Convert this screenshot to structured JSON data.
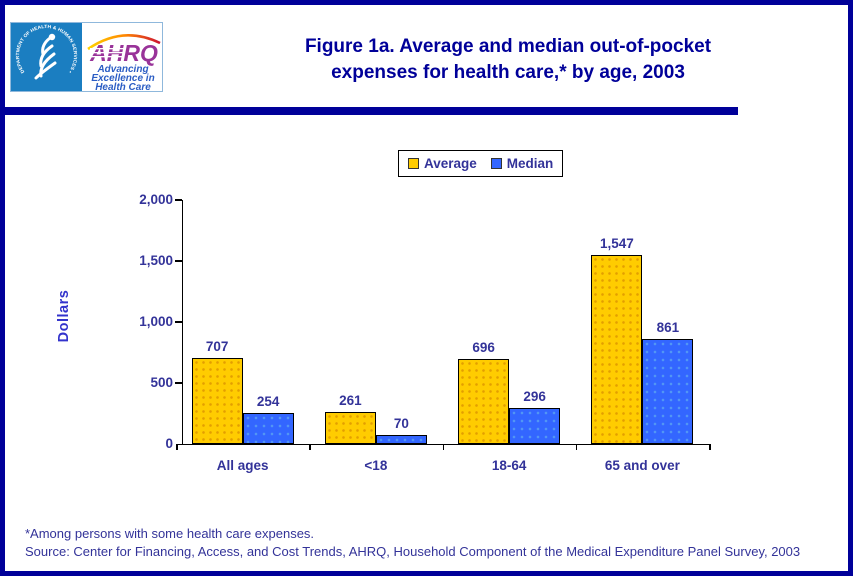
{
  "header": {
    "title_lines": [
      "Figure 1a. Average and median out-of-pocket",
      "expenses for health care,* by age, 2003"
    ]
  },
  "logo": {
    "hhs_circle_text": "DEPARTMENT OF HEALTH & HUMAN SERVICES • USA",
    "acronym": "AHRQ",
    "tagline": [
      "Advancing",
      "Excellence in",
      "Health Care"
    ]
  },
  "legend": {
    "items": [
      {
        "label": "Average"
      },
      {
        "label": "Median"
      }
    ]
  },
  "chart_data": {
    "type": "bar",
    "title": "Figure 1a. Average and median out-of-pocket expenses for health care,* by age, 2003",
    "categories": [
      "All ages",
      "<18",
      "18-64",
      "65 and over"
    ],
    "series": [
      {
        "name": "Average",
        "color": "#FFCC00",
        "values": [
          707,
          261,
          696,
          1547
        ],
        "labels": [
          "707",
          "261",
          "696",
          "1,547"
        ]
      },
      {
        "name": "Median",
        "color": "#3366FF",
        "values": [
          254,
          70,
          296,
          861
        ],
        "labels": [
          "254",
          "70",
          "296",
          "861"
        ]
      }
    ],
    "xlabel": "",
    "ylabel": "Dollars",
    "ylim": [
      0,
      2000
    ],
    "yticks": [
      0,
      500,
      1000,
      1500,
      2000
    ],
    "ytick_labels": [
      "0",
      "500",
      "1,000",
      "1,500",
      "2,000"
    ],
    "grid": false,
    "legend_position": "top-center"
  },
  "footnotes": [
    "*Among persons with some health care expenses.",
    "Source: Center for Financing, Access, and Cost Trends, AHRQ, Household Component of the Medical Expenditure Panel Survey, 2003"
  ],
  "colors": {
    "accent_navy": "#000099",
    "chart_text": "#333399",
    "hhs_blue": "#1B7EC1",
    "ahrq_purple": "#993399"
  }
}
